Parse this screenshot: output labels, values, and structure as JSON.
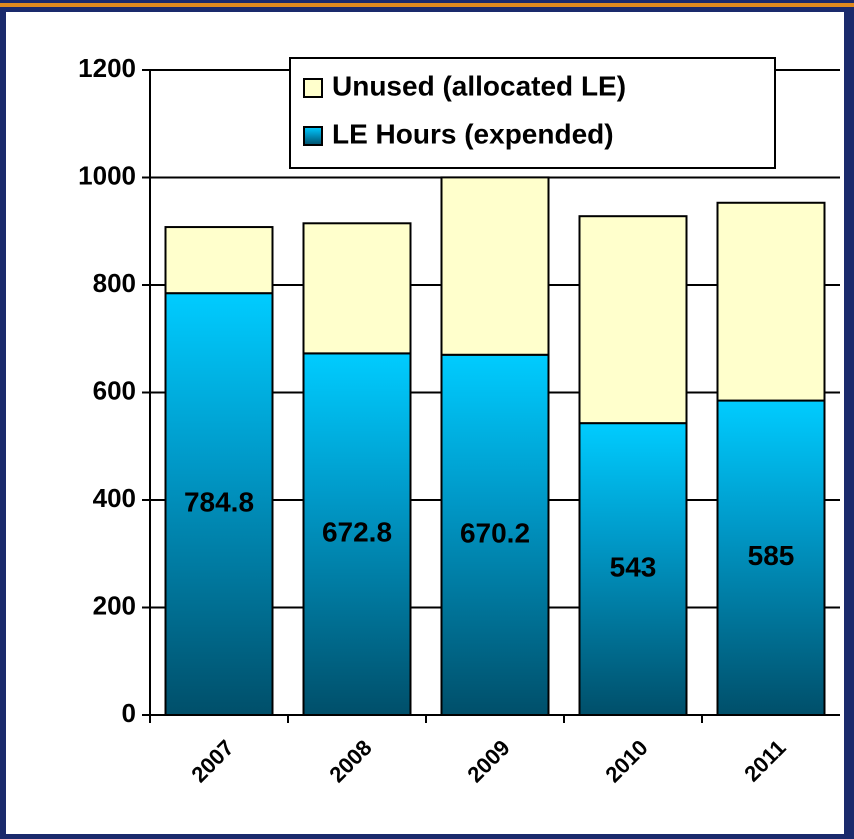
{
  "chart_data": {
    "type": "stacked_bar",
    "categories": [
      "2007",
      "2008",
      "2009",
      "2010",
      "2011"
    ],
    "series": [
      {
        "name": "LE Hours (expended)",
        "color": "#00c8f8",
        "values": [
          784.8,
          672.8,
          670.2,
          543,
          585
        ]
      },
      {
        "name": "Unused (allocated LE)",
        "color": "#ffffcc",
        "values": [
          123,
          242,
          330,
          385,
          368
        ]
      }
    ],
    "ylim": [
      0,
      1200
    ],
    "yticks": [
      0,
      200,
      400,
      600,
      800,
      1000,
      1200
    ],
    "grid": true,
    "legend": "top-right"
  }
}
